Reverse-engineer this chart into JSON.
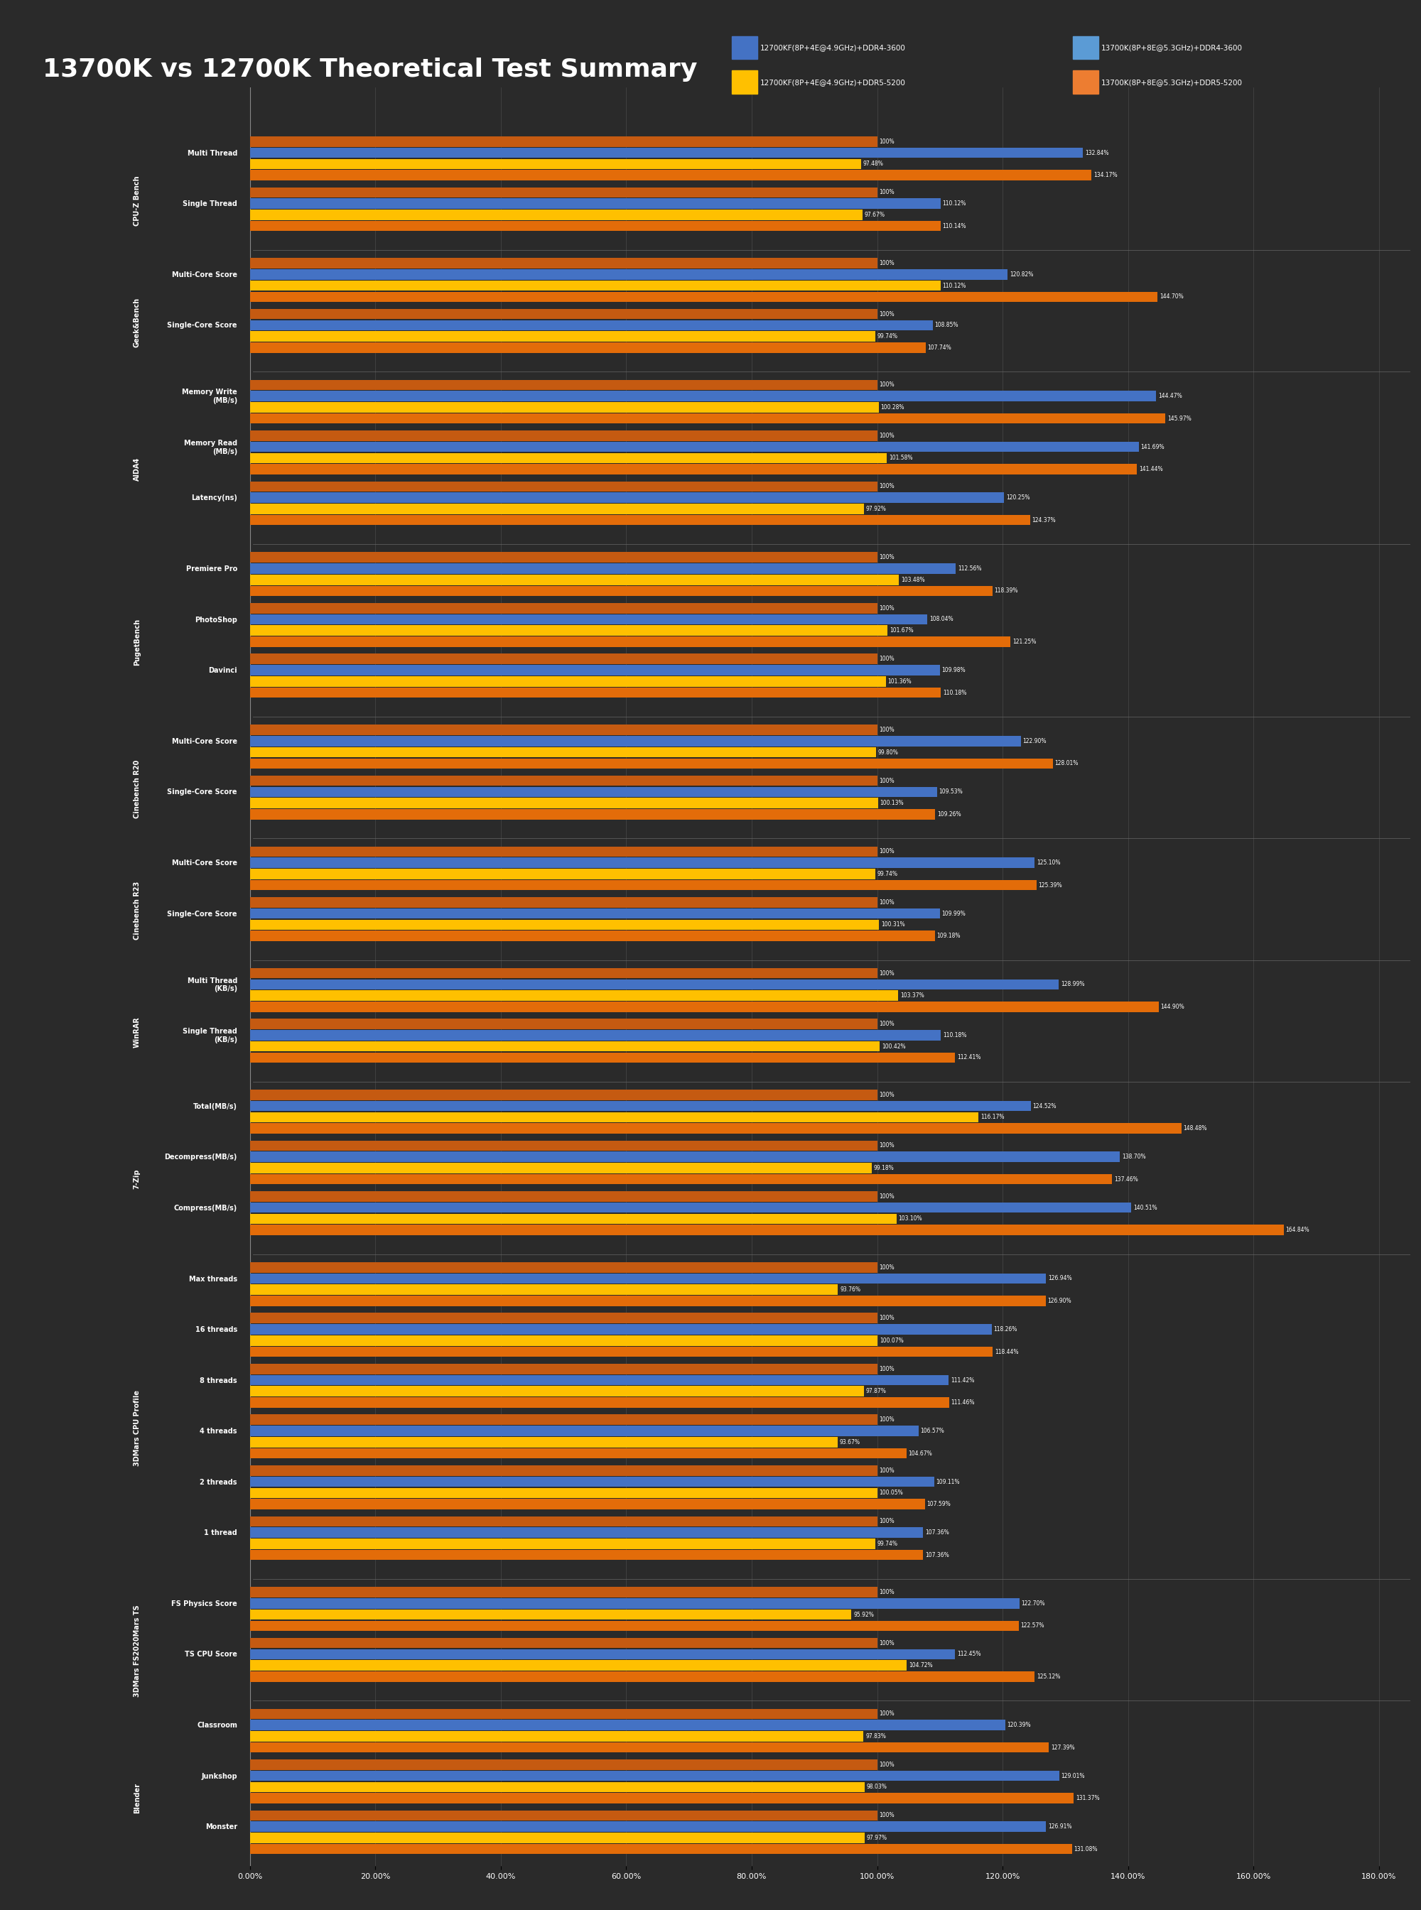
{
  "title": "13700K vs 12700K Theoretical Test Summary",
  "background_color": "#2a2a2a",
  "text_color": "#ffffff",
  "legend": [
    {
      "label": "12700KF(8P+4E@4.9GHz)+DDR4-3600",
      "color": "#4472c4"
    },
    {
      "label": "13700K(8P+8E@5.3GHz)+DDR4-3600",
      "color": "#4472c4"
    },
    {
      "label": "12700KF(8P+4E@4.9GHz)+DDR5-5200",
      "color": "#ffc000"
    },
    {
      "label": "13700K(8P+8E@5.3GHz)+DDR5-5200",
      "color": "#ffc000"
    }
  ],
  "groups": [
    {
      "group_label": "Blender",
      "benchmarks": [
        {
          "label": "Monster",
          "bars": [
            100.0,
            126.91,
            97.97,
            131.08
          ]
        },
        {
          "label": "Junkshop",
          "bars": [
            100.0,
            129.01,
            98.03,
            131.37
          ]
        },
        {
          "label": "Classroom",
          "bars": [
            100.0,
            120.39,
            97.83,
            127.39
          ]
        }
      ]
    },
    {
      "group_label": "3DMars FS2020Mars TS",
      "benchmarks": [
        {
          "label": "TS CPU Score",
          "bars": [
            100.0,
            112.45,
            104.72,
            125.12
          ]
        },
        {
          "label": "FS Physics Score",
          "bars": [
            100.0,
            122.7,
            95.92,
            122.57
          ]
        }
      ]
    },
    {
      "group_label": "3DMars CPU Profile",
      "benchmarks": [
        {
          "label": "1 thread",
          "bars": [
            100.0,
            107.36,
            99.74,
            107.36
          ]
        },
        {
          "label": "2 threads",
          "bars": [
            100.0,
            109.11,
            100.05,
            107.59
          ]
        },
        {
          "label": "4 threads",
          "bars": [
            100.0,
            106.57,
            93.67,
            104.67
          ]
        },
        {
          "label": "8 threads",
          "bars": [
            100.0,
            111.42,
            97.87,
            111.46
          ]
        },
        {
          "label": "16 threads",
          "bars": [
            100.0,
            118.26,
            100.07,
            118.44
          ]
        },
        {
          "label": "Max threads",
          "bars": [
            100.0,
            126.94,
            93.76,
            126.9
          ]
        }
      ]
    },
    {
      "group_label": "7-Zip",
      "benchmarks": [
        {
          "label": "Compress(MB/s)",
          "bars": [
            100.0,
            140.51,
            103.1,
            164.84
          ]
        },
        {
          "label": "Decompress(MB/s)",
          "bars": [
            100.0,
            138.7,
            99.18,
            137.46
          ]
        },
        {
          "label": "Total(MB/s)",
          "bars": [
            100.0,
            124.52,
            116.17,
            148.48
          ]
        }
      ]
    },
    {
      "group_label": "WinRAR",
      "benchmarks": [
        {
          "label": "Single Thread\n(KB/s)",
          "bars": [
            100.0,
            110.18,
            100.42,
            112.41
          ]
        },
        {
          "label": "Multi Thread\n(KB/s)",
          "bars": [
            100.0,
            128.99,
            103.37,
            144.9
          ]
        }
      ]
    },
    {
      "group_label": "Cinebench R23",
      "benchmarks": [
        {
          "label": "Single-Core Score",
          "bars": [
            100.0,
            109.99,
            100.31,
            109.18
          ]
        },
        {
          "label": "Multi-Core Score",
          "bars": [
            100.0,
            125.1,
            99.74,
            125.39
          ]
        }
      ]
    },
    {
      "group_label": "Cinebench R20",
      "benchmarks": [
        {
          "label": "Single-Core Score",
          "bars": [
            100.0,
            109.53,
            100.13,
            109.26
          ]
        },
        {
          "label": "Multi-Core Score",
          "bars": [
            100.0,
            122.9,
            99.8,
            128.01
          ]
        }
      ]
    },
    {
      "group_label": "PugetBench",
      "benchmarks": [
        {
          "label": "Davinci",
          "bars": [
            100.0,
            109.98,
            101.36,
            110.18
          ]
        },
        {
          "label": "PhotoShop",
          "bars": [
            100.0,
            108.04,
            101.67,
            121.25
          ]
        },
        {
          "label": "Premiere Pro",
          "bars": [
            100.0,
            112.56,
            103.48,
            118.39
          ]
        }
      ]
    },
    {
      "group_label": "AIDA4",
      "benchmarks": [
        {
          "label": "Latency(ns)",
          "bars": [
            100.0,
            120.25,
            97.92,
            124.37
          ]
        },
        {
          "label": "Memory Read\n(MB/s)",
          "bars": [
            100.0,
            141.69,
            101.58,
            141.44
          ]
        },
        {
          "label": "Memory Write\n(MB/s)",
          "bars": [
            100.0,
            144.47,
            100.28,
            145.97
          ]
        }
      ]
    },
    {
      "group_label": "Geek&Bench",
      "benchmarks": [
        {
          "label": "Single-Core Score",
          "bars": [
            100.0,
            108.85,
            99.74,
            107.74
          ]
        },
        {
          "label": "Multi-Core Score",
          "bars": [
            100.0,
            120.82,
            110.12,
            144.7
          ]
        }
      ]
    },
    {
      "group_label": "CPU-Z Bench",
      "benchmarks": [
        {
          "label": "Single Thread",
          "bars": [
            100.0,
            110.12,
            97.67,
            110.14
          ]
        },
        {
          "label": "Multi Thread",
          "bars": [
            100.0,
            132.84,
            97.48,
            134.17
          ]
        }
      ]
    }
  ],
  "bar_colors": [
    "#4472c4",
    "#5b9bd5",
    "#ffc000",
    "#ed7d31"
  ],
  "bar_height": 0.18,
  "xlim": [
    0,
    180
  ],
  "xtick_step": 20
}
